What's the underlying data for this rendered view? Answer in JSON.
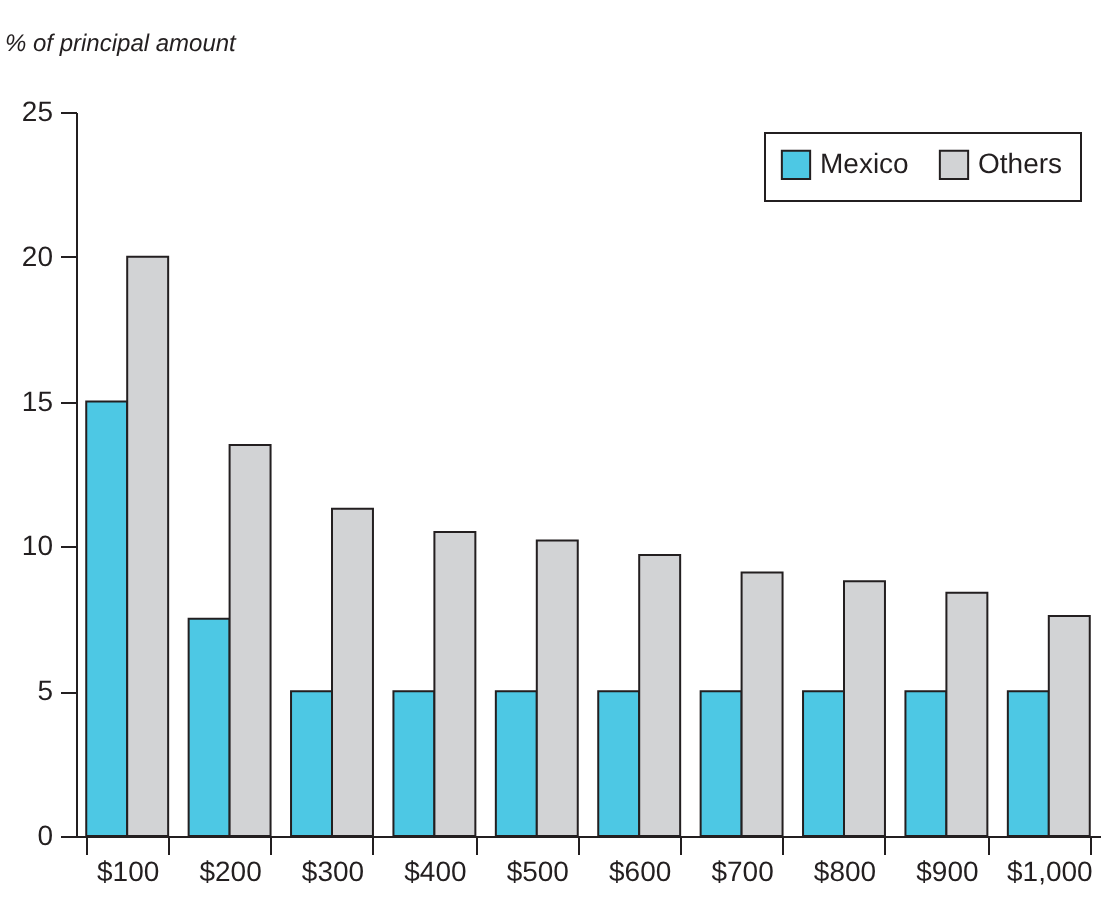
{
  "chart_data": {
    "type": "bar",
    "ylabel": "% of principal amount",
    "categories": [
      "$100",
      "$200",
      "$300",
      "$400",
      "$500",
      "$600",
      "$700",
      "$800",
      "$900",
      "$1,000"
    ],
    "series": [
      {
        "name": "Mexico",
        "color": "#4dc8e4",
        "values": [
          15,
          7.5,
          5,
          5,
          5,
          5,
          5,
          5,
          5,
          5
        ]
      },
      {
        "name": "Others",
        "color": "#d2d3d5",
        "values": [
          20,
          13.5,
          11.3,
          10.5,
          10.2,
          9.7,
          9.1,
          8.8,
          8.4,
          7.6
        ]
      }
    ],
    "ylim": [
      0,
      25
    ],
    "yticks": [
      0,
      5,
      10,
      15,
      20,
      25
    ],
    "grid": false,
    "legend": "top right"
  }
}
